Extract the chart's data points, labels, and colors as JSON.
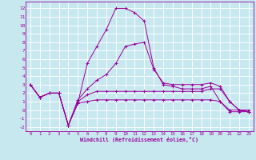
{
  "xlabel": "Windchill (Refroidissement éolien,°C)",
  "x": [
    0,
    1,
    2,
    3,
    4,
    5,
    6,
    7,
    8,
    9,
    10,
    11,
    12,
    13,
    14,
    15,
    16,
    17,
    18,
    19,
    20,
    21,
    22,
    23
  ],
  "line1": [
    3.0,
    1.5,
    2.0,
    2.0,
    -1.8,
    1.2,
    2.5,
    3.5,
    4.2,
    5.5,
    7.5,
    7.8,
    8.0,
    4.8,
    3.2,
    3.0,
    3.0,
    3.0,
    3.0,
    3.2,
    2.8,
    1.0,
    0.0,
    0.0
  ],
  "line2": [
    3.0,
    1.5,
    2.0,
    2.0,
    -1.8,
    0.8,
    5.5,
    7.5,
    9.5,
    12.0,
    12.0,
    11.5,
    10.5,
    5.0,
    3.0,
    2.8,
    2.5,
    2.5,
    2.5,
    2.8,
    1.0,
    0.0,
    0.0,
    -0.2
  ],
  "line3": [
    3.0,
    1.5,
    2.0,
    2.0,
    -1.8,
    1.0,
    1.8,
    2.2,
    2.2,
    2.2,
    2.2,
    2.2,
    2.2,
    2.2,
    2.2,
    2.2,
    2.2,
    2.2,
    2.2,
    2.5,
    2.5,
    1.0,
    0.0,
    -0.2
  ],
  "line4": [
    3.0,
    1.5,
    2.0,
    2.0,
    -1.8,
    0.8,
    1.0,
    1.2,
    1.2,
    1.2,
    1.2,
    1.2,
    1.2,
    1.2,
    1.2,
    1.2,
    1.2,
    1.2,
    1.2,
    1.2,
    1.0,
    -0.2,
    -0.2,
    -0.2
  ],
  "color": "#990099",
  "bg_color": "#c8e8f0",
  "grid_color": "#ffffff",
  "ylim": [
    -2.5,
    12.8
  ],
  "xlim": [
    -0.5,
    23.5
  ],
  "yticks": [
    -2,
    -1,
    0,
    1,
    2,
    3,
    4,
    5,
    6,
    7,
    8,
    9,
    10,
    11,
    12
  ],
  "xticks": [
    0,
    1,
    2,
    3,
    4,
    5,
    6,
    7,
    8,
    9,
    10,
    11,
    12,
    13,
    14,
    15,
    16,
    17,
    18,
    19,
    20,
    21,
    22,
    23
  ]
}
